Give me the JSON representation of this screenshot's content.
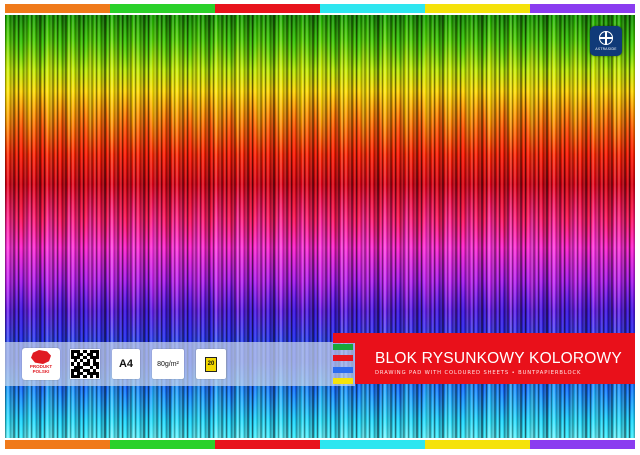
{
  "colors": {
    "stripe": [
      "#f07a1a",
      "#2ad12a",
      "#e8141c",
      "#2ee6f0",
      "#f5e20a",
      "#8a3cf0"
    ],
    "title_panel": "#e9101a",
    "color_ticks": [
      "#18a83a",
      "#e8141c",
      "#2a6cf0",
      "#f5e20a"
    ]
  },
  "logo": {
    "icon": "globe-icon",
    "brand": "ASTRASIDE"
  },
  "produkt": {
    "line1": "PRODUKT",
    "line2": "POLSKI"
  },
  "badges": {
    "format": "A4",
    "weight": "80g/m²",
    "sheets": "20"
  },
  "title": {
    "main": "BLOK RYSUNKOWY KOLOROWY",
    "sub": "DRAWING PAD WITH COLOURED SHEETS • BUNTPAPIERBLOCK"
  }
}
